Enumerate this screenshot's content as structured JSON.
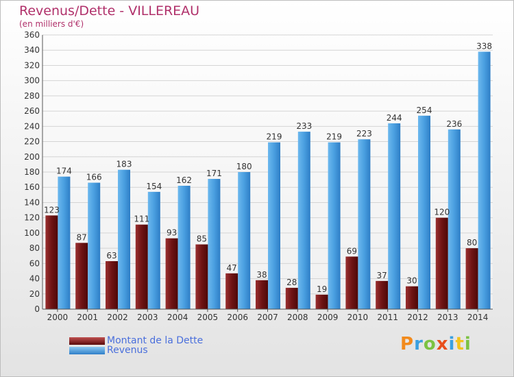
{
  "title": "Revenus/Dette - VILLEREAU",
  "subtitle": "(en milliers d'€)",
  "logo": {
    "text": "Proxiti",
    "colors": [
      "#f28a1c",
      "#3aa0e0",
      "#7cc242",
      "#e84e1b",
      "#3aa0e0",
      "#f2c31c",
      "#7cc242"
    ]
  },
  "colors": {
    "dette": "#7a1a1a",
    "revenus": "#4a9fe0",
    "title": "#b0306a"
  },
  "chart_data": {
    "type": "bar",
    "categories": [
      "2000",
      "2001",
      "2002",
      "2003",
      "2004",
      "2005",
      "2006",
      "2007",
      "2008",
      "2009",
      "2010",
      "2011",
      "2012",
      "2013",
      "2014"
    ],
    "series": [
      {
        "name": "Montant de la Dette",
        "values": [
          123,
          87,
          63,
          111,
          93,
          85,
          47,
          38,
          28,
          19,
          69,
          37,
          30,
          120,
          80
        ]
      },
      {
        "name": "Revenus",
        "values": [
          174,
          166,
          183,
          154,
          162,
          171,
          180,
          219,
          233,
          219,
          223,
          244,
          254,
          236,
          338
        ]
      }
    ],
    "ylim": [
      0,
      360
    ],
    "yticks": [
      0,
      20,
      40,
      60,
      80,
      100,
      120,
      140,
      160,
      180,
      200,
      220,
      240,
      260,
      280,
      300,
      320,
      340,
      360
    ],
    "grid": true,
    "legend": "bottom-left"
  }
}
